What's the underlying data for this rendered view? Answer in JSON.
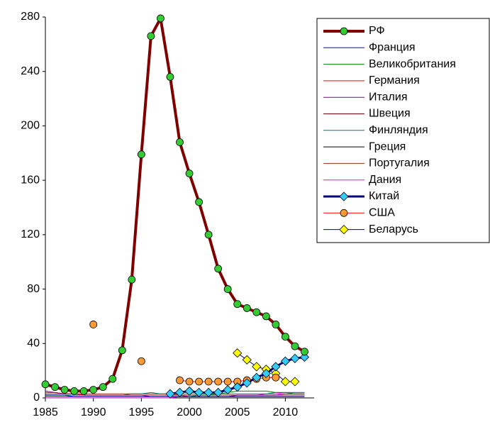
{
  "chart_data": {
    "type": "line",
    "x": [
      1985,
      1986,
      1987,
      1988,
      1989,
      1990,
      1991,
      1992,
      1993,
      1994,
      1995,
      1996,
      1997,
      1998,
      1999,
      2000,
      2001,
      2002,
      2003,
      2004,
      2005,
      2006,
      2007,
      2008,
      2009,
      2010,
      2011,
      2012
    ],
    "xlim": [
      1985,
      2013
    ],
    "xticks": [
      1985,
      1990,
      1995,
      2000,
      2005,
      2010
    ],
    "ylim": [
      0,
      280
    ],
    "yticks": [
      0,
      40,
      80,
      120,
      160,
      200,
      240,
      280
    ],
    "grid": false,
    "legend": "right",
    "series": [
      {
        "name": "РФ",
        "color": "#800000",
        "line_width": 4,
        "marker": "circle",
        "marker_color": "#33cc33",
        "values": [
          10,
          8,
          6,
          5,
          5,
          6,
          8,
          14,
          35,
          87,
          179,
          266,
          279,
          236,
          188,
          165,
          144,
          120,
          95,
          80,
          69,
          66,
          63,
          60,
          54,
          45,
          38,
          34
        ]
      },
      {
        "name": "Франция",
        "color": "#0000ff",
        "line_width": 1,
        "values": [
          2,
          2,
          2,
          1,
          1,
          1,
          1,
          1,
          1,
          1,
          1,
          1,
          1,
          1,
          1,
          1,
          1,
          1,
          1,
          1,
          1,
          1,
          1,
          1,
          1,
          1,
          1,
          1
        ]
      },
      {
        "name": "Великобритания",
        "color": "#008000",
        "line_width": 1,
        "values": [
          1,
          1,
          1,
          1,
          1,
          1,
          1,
          1,
          1,
          1,
          1,
          1,
          1,
          1,
          1,
          1,
          2,
          2,
          3,
          4,
          5,
          5,
          5,
          5,
          4,
          4,
          3,
          3
        ]
      },
      {
        "name": "Германия",
        "color": "#ff0000",
        "line_width": 1,
        "values": [
          3,
          3,
          3,
          3,
          2,
          2,
          2,
          2,
          2,
          2,
          2,
          2,
          2,
          2,
          2,
          1,
          1,
          1,
          1,
          1,
          1,
          1,
          1,
          1,
          1,
          1,
          1,
          1
        ]
      },
      {
        "name": "Италия",
        "color": "#800080",
        "line_width": 1,
        "values": [
          5,
          4,
          3,
          3,
          2,
          2,
          2,
          2,
          2,
          2,
          2,
          1,
          1,
          1,
          1,
          1,
          1,
          1,
          1,
          1,
          2,
          2,
          2,
          2,
          2,
          3,
          3,
          3
        ]
      },
      {
        "name": "Швеция",
        "color": "#800000",
        "line_width": 1,
        "values": [
          1,
          1,
          1,
          1,
          1,
          1,
          1,
          1,
          1,
          1,
          1,
          1,
          1,
          1,
          1,
          1,
          1,
          1,
          1,
          1,
          1,
          1,
          1,
          1,
          1,
          1,
          1,
          1
        ]
      },
      {
        "name": "Финляндия",
        "color": "#008080",
        "line_width": 1,
        "values": [
          2,
          2,
          2,
          2,
          2,
          2,
          2,
          2,
          2,
          3,
          3,
          4,
          3,
          3,
          3,
          3,
          3,
          3,
          3,
          3,
          3,
          3,
          3,
          3,
          4,
          4,
          4,
          4
        ]
      },
      {
        "name": "Греция",
        "color": "#000000",
        "line_width": 1,
        "values": [
          1,
          1,
          1,
          1,
          1,
          1,
          1,
          1,
          1,
          1,
          1,
          1,
          1,
          1,
          1,
          1,
          1,
          1,
          1,
          1,
          1,
          1,
          1,
          1,
          1,
          1,
          1,
          1
        ]
      },
      {
        "name": "Португалия",
        "color": "#993300",
        "line_width": 1,
        "values": [
          4,
          4,
          3,
          3,
          3,
          3,
          3,
          3,
          3,
          3,
          3,
          3,
          3,
          3,
          2,
          2,
          2,
          2,
          2,
          2,
          2,
          2,
          2,
          2,
          2,
          2,
          2,
          2
        ]
      },
      {
        "name": "Дания",
        "color": "#ff00ff",
        "line_width": 1,
        "values": [
          0,
          0,
          0,
          0,
          0,
          0,
          0,
          0,
          0,
          0,
          0,
          0,
          0,
          0,
          1,
          1,
          1,
          1,
          1,
          1,
          2,
          2,
          2,
          3,
          3,
          4,
          4,
          4
        ]
      },
      {
        "name": "Китай",
        "color": "#000080",
        "line_width": 3,
        "marker": "diamond",
        "marker_color": "#33ccff",
        "values": [
          null,
          null,
          null,
          null,
          null,
          null,
          null,
          null,
          null,
          null,
          null,
          null,
          null,
          3,
          4,
          5,
          4,
          4,
          4,
          6,
          8,
          11,
          15,
          18,
          23,
          27,
          29,
          30
        ]
      },
      {
        "name": "США",
        "color": "#ff0000",
        "line_width": 1,
        "marker": "circle",
        "marker_color": "#ff9933",
        "values": [
          null,
          null,
          null,
          null,
          null,
          54,
          null,
          null,
          null,
          null,
          27,
          null,
          null,
          null,
          13,
          12,
          12,
          12,
          12,
          12,
          12,
          13,
          14,
          15,
          15,
          null,
          null,
          null
        ]
      },
      {
        "name": "Беларусь",
        "color": "#000080",
        "line_width": 1,
        "marker": "diamond",
        "marker_color": "#ffff00",
        "values": [
          null,
          null,
          null,
          null,
          null,
          null,
          null,
          null,
          null,
          null,
          null,
          null,
          null,
          null,
          null,
          null,
          null,
          null,
          null,
          null,
          33,
          28,
          23,
          21,
          18,
          12,
          12,
          null
        ]
      }
    ]
  }
}
